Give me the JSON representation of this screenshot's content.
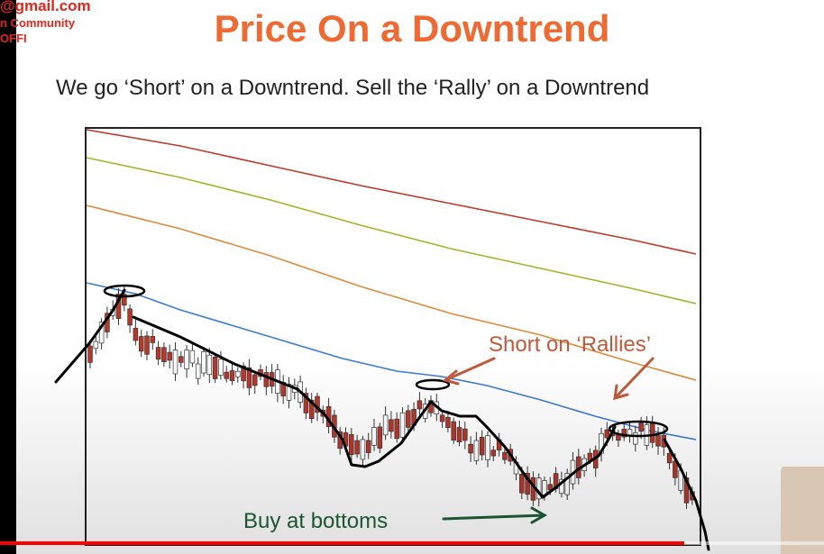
{
  "watermark": {
    "line1": "@gmail.com",
    "line2": "n Community",
    "line3": "OFFI"
  },
  "slide": {
    "title": "Price On a Downtrend",
    "subtitle": "We go ‘Short’ on a Downtrend. Sell the ‘Rally’ on a Downtrend"
  },
  "annotations": {
    "short": "Short on ‘Rallies’",
    "buy": "Buy at bottoms"
  },
  "colors": {
    "title": "#ef6a33",
    "short_label": "#c05a3a",
    "buy_label": "#1f5e38",
    "ma_red": "#c0392b",
    "ma_green": "#9cb82a",
    "ma_orange": "#e08a3c",
    "ma_blue": "#3a7bd5",
    "candle_up": "#ffffff",
    "candle_down": "#b8372b"
  },
  "video": {
    "progress": 0.83
  }
}
